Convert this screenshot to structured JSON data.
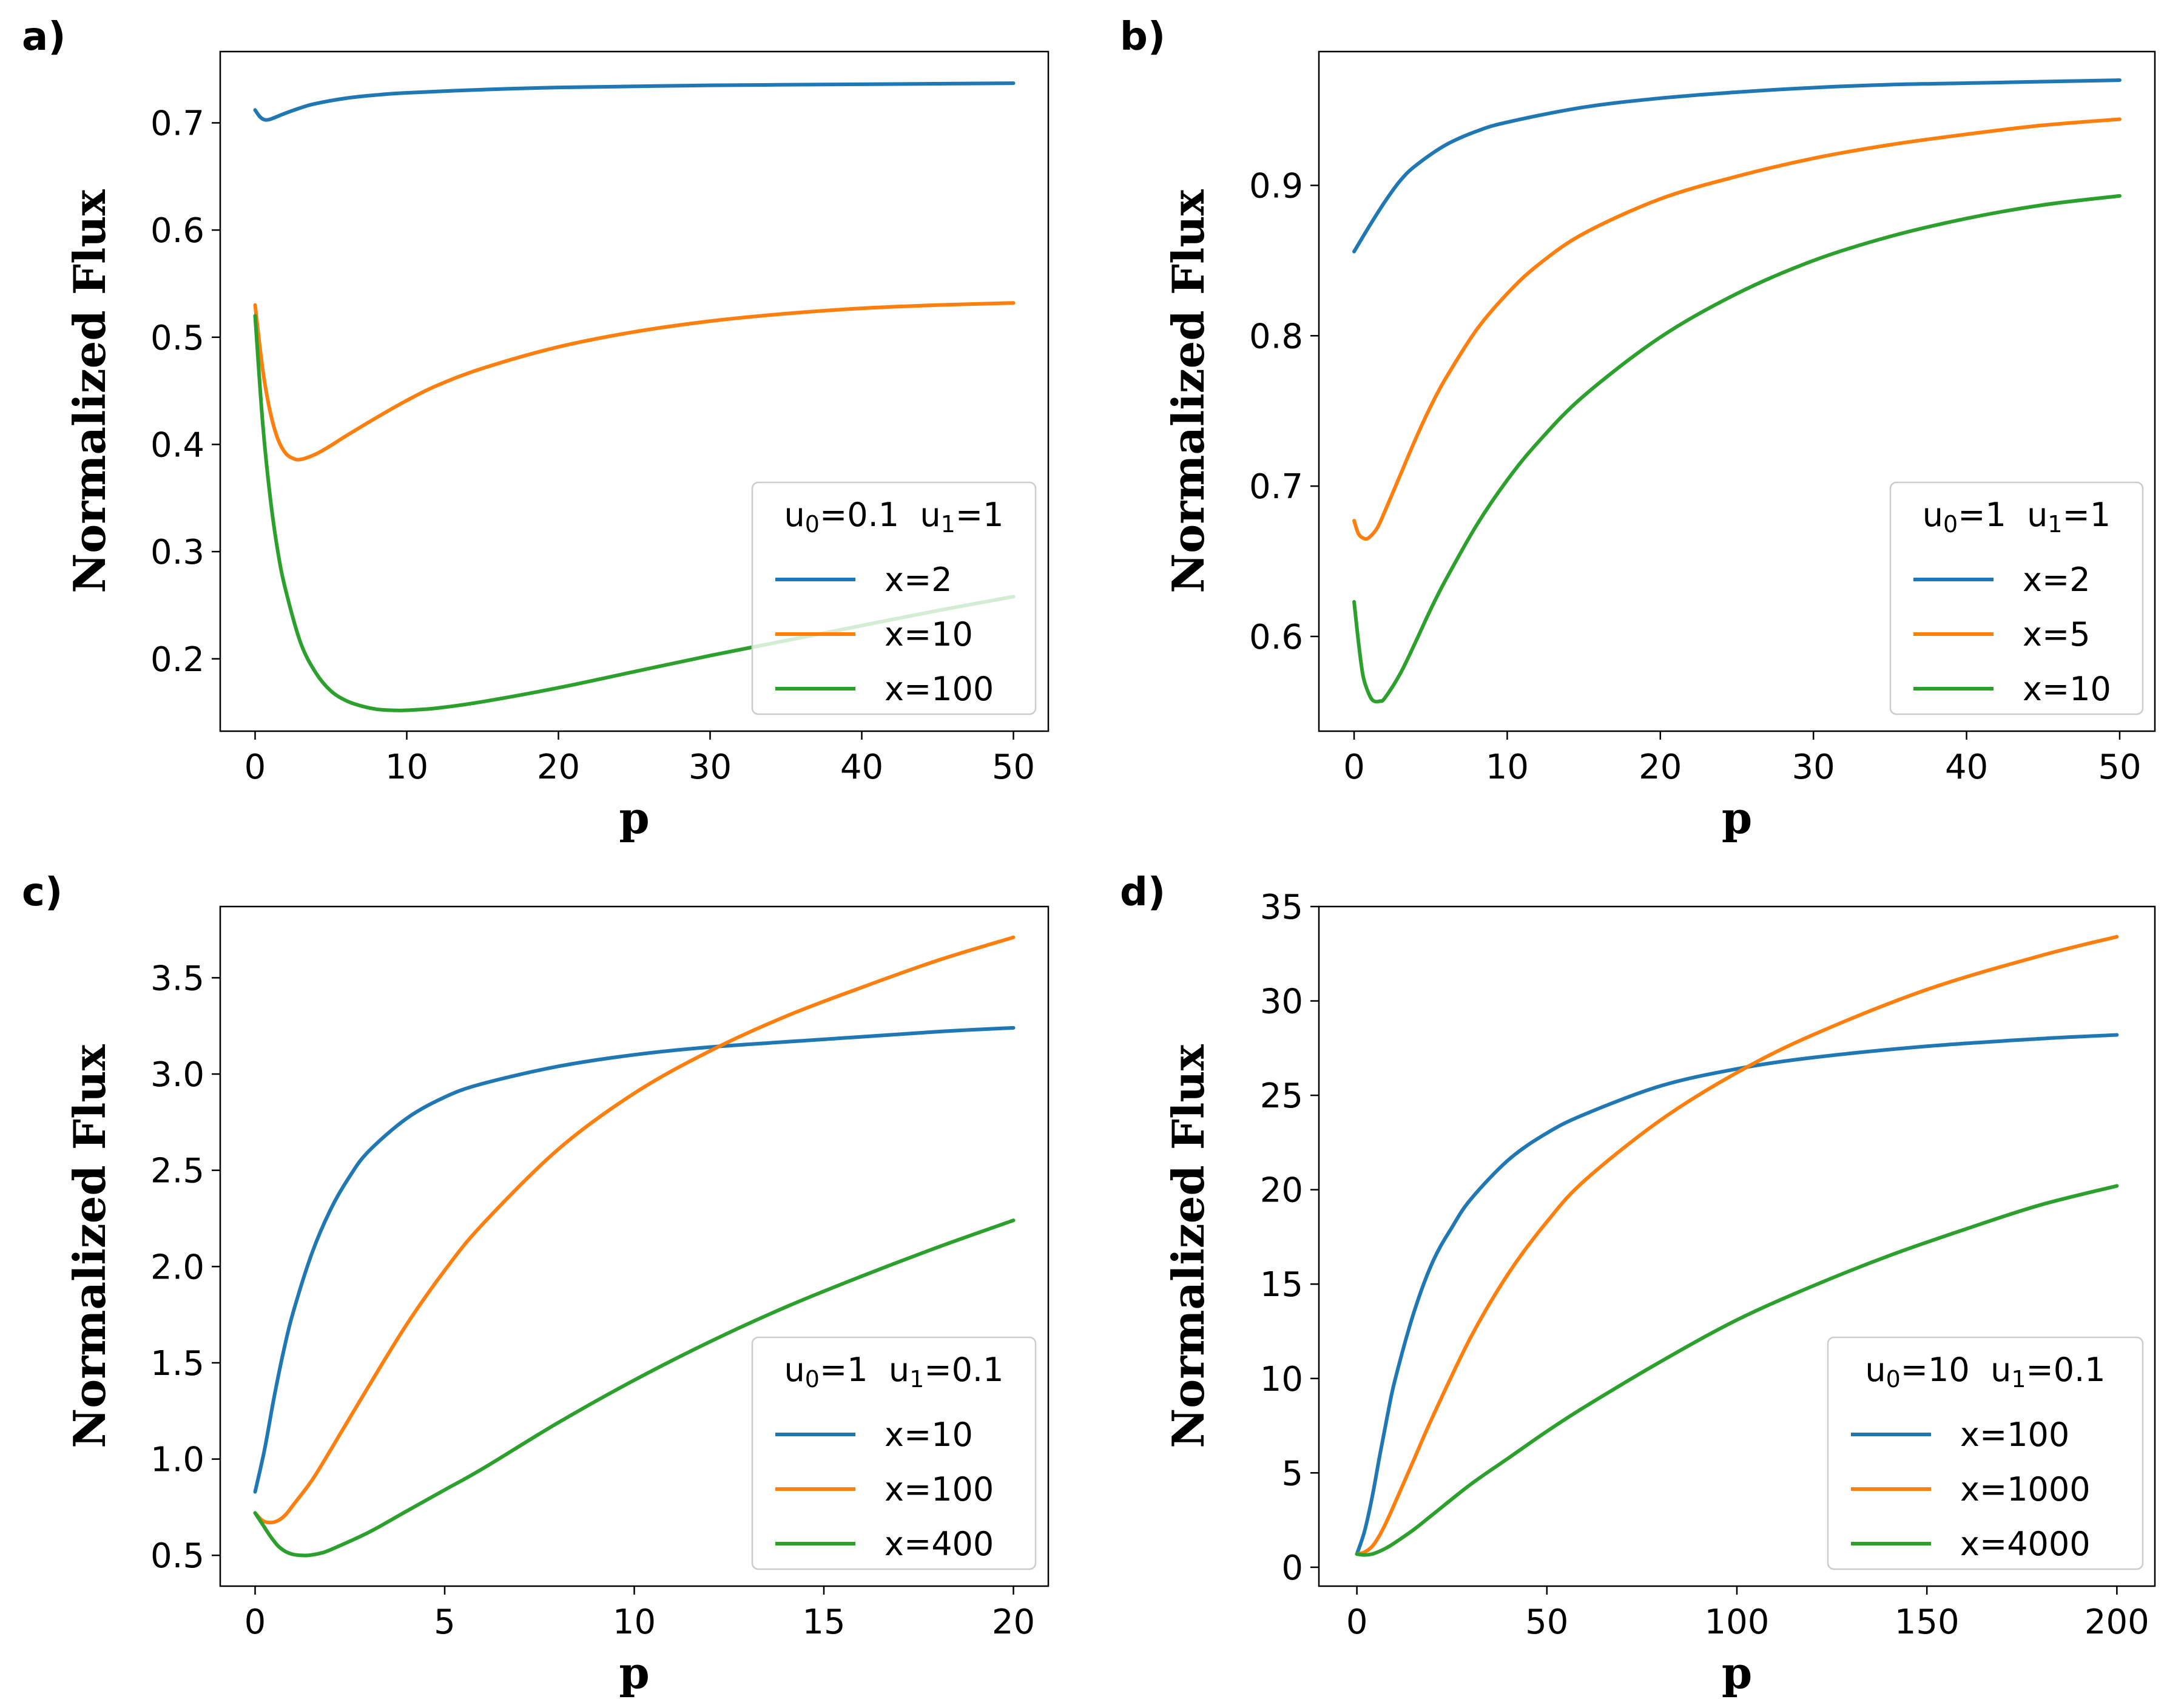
{
  "colors": {
    "blue": "#1f77b4",
    "orange": "#ff7f0e",
    "green": "#2ca02c"
  },
  "chart_data": [
    {
      "type": "line",
      "panel_label": "a)",
      "xlabel": "p",
      "ylabel": "Normalized Flux",
      "xlim": [
        -2.3,
        52.3
      ],
      "ylim": [
        0.1325,
        0.7665
      ],
      "xticks": [
        0,
        10,
        20,
        30,
        40,
        50
      ],
      "xtick_labels": [
        "0",
        "10",
        "20",
        "30",
        "40",
        "50"
      ],
      "yticks": [
        0.2,
        0.3,
        0.4,
        0.5,
        0.6,
        0.7
      ],
      "ytick_labels": [
        "0.2",
        "0.3",
        "0.4",
        "0.5",
        "0.6",
        "0.7"
      ],
      "legend_title": {
        "u0": "0.1",
        "u1": "1"
      },
      "legend_loc": "lower-right",
      "series": [
        {
          "name": "x=2",
          "color": "#1f77b4",
          "x": [
            0,
            0.3,
            0.6,
            0.9,
            1.3,
            2,
            3,
            4,
            6,
            8,
            10,
            15,
            20,
            30,
            40,
            50
          ],
          "y": [
            0.712,
            0.706,
            0.703,
            0.703,
            0.705,
            0.709,
            0.714,
            0.718,
            0.723,
            0.726,
            0.728,
            0.731,
            0.733,
            0.735,
            0.736,
            0.737
          ]
        },
        {
          "name": "x=10",
          "color": "#ff7f0e",
          "x": [
            0,
            0.5,
            1,
            1.5,
            2,
            2.5,
            3,
            4,
            5,
            6,
            8,
            10,
            12,
            15,
            20,
            25,
            30,
            35,
            40,
            45,
            50
          ],
          "y": [
            0.53,
            0.47,
            0.43,
            0.405,
            0.392,
            0.387,
            0.386,
            0.391,
            0.399,
            0.408,
            0.425,
            0.441,
            0.455,
            0.471,
            0.491,
            0.505,
            0.515,
            0.522,
            0.527,
            0.53,
            0.532
          ]
        },
        {
          "name": "x=100",
          "color": "#2ca02c",
          "x": [
            0,
            0.5,
            1,
            1.5,
            2,
            3,
            4,
            5,
            6,
            7,
            8,
            9,
            10,
            12,
            15,
            20,
            25,
            30,
            35,
            40,
            45,
            50
          ],
          "y": [
            0.52,
            0.42,
            0.35,
            0.3,
            0.265,
            0.215,
            0.187,
            0.17,
            0.161,
            0.156,
            0.153,
            0.152,
            0.152,
            0.154,
            0.16,
            0.173,
            0.188,
            0.203,
            0.217,
            0.231,
            0.245,
            0.258
          ]
        }
      ]
    },
    {
      "type": "line",
      "panel_label": "b)",
      "xlabel": "p",
      "ylabel": "Normalized Flux",
      "xlim": [
        -2.3,
        52.3
      ],
      "ylim": [
        0.537,
        0.989
      ],
      "xticks": [
        0,
        10,
        20,
        30,
        40,
        50
      ],
      "xtick_labels": [
        "0",
        "10",
        "20",
        "30",
        "40",
        "50"
      ],
      "yticks": [
        0.6,
        0.7,
        0.8,
        0.9
      ],
      "ytick_labels": [
        "0.6",
        "0.7",
        "0.8",
        "0.9"
      ],
      "legend_title": {
        "u0": "1",
        "u1": "1"
      },
      "legend_loc": "lower-right",
      "series": [
        {
          "name": "x=2",
          "color": "#1f77b4",
          "x": [
            0,
            1,
            2,
            3,
            4,
            6,
            8,
            10,
            15,
            20,
            25,
            30,
            35,
            40,
            45,
            50
          ],
          "y": [
            0.856,
            0.873,
            0.889,
            0.903,
            0.913,
            0.927,
            0.936,
            0.942,
            0.952,
            0.958,
            0.962,
            0.965,
            0.967,
            0.968,
            0.969,
            0.97
          ]
        },
        {
          "name": "x=5",
          "color": "#ff7f0e",
          "x": [
            0,
            0.3,
            0.7,
            1,
            1.5,
            2,
            3,
            4,
            5,
            6,
            8,
            10,
            12,
            15,
            20,
            25,
            30,
            35,
            40,
            45,
            50
          ],
          "y": [
            0.677,
            0.668,
            0.665,
            0.666,
            0.672,
            0.683,
            0.707,
            0.731,
            0.753,
            0.772,
            0.804,
            0.828,
            0.847,
            0.868,
            0.891,
            0.906,
            0.918,
            0.927,
            0.934,
            0.94,
            0.944
          ]
        },
        {
          "name": "x=10",
          "color": "#2ca02c",
          "x": [
            0,
            0.3,
            0.6,
            1,
            1.3,
            1.7,
            2,
            3,
            4,
            5,
            6,
            8,
            10,
            12,
            15,
            20,
            25,
            30,
            35,
            40,
            45,
            50
          ],
          "y": [
            0.623,
            0.595,
            0.573,
            0.561,
            0.557,
            0.557,
            0.559,
            0.575,
            0.596,
            0.618,
            0.638,
            0.674,
            0.704,
            0.729,
            0.76,
            0.799,
            0.828,
            0.85,
            0.866,
            0.878,
            0.887,
            0.893
          ]
        }
      ]
    },
    {
      "type": "line",
      "panel_label": "c)",
      "xlabel": "p",
      "ylabel": "Normalized Flux",
      "xlim": [
        -0.92,
        20.92
      ],
      "ylim": [
        0.34,
        3.87
      ],
      "xticks": [
        0,
        5,
        10,
        15,
        20
      ],
      "xtick_labels": [
        "0",
        "5",
        "10",
        "15",
        "20"
      ],
      "yticks": [
        0.5,
        1.0,
        1.5,
        2.0,
        2.5,
        3.0,
        3.5
      ],
      "ytick_labels": [
        "0.5",
        "1.0",
        "1.5",
        "2.0",
        "2.5",
        "3.0",
        "3.5"
      ],
      "legend_title": {
        "u0": "1",
        "u1": "0.1"
      },
      "legend_loc": "lower-right",
      "series": [
        {
          "name": "x=10",
          "color": "#1f77b4",
          "x": [
            0,
            0.25,
            0.5,
            0.75,
            1,
            1.5,
            2,
            2.5,
            3,
            4,
            5,
            6,
            8,
            10,
            12,
            15,
            18,
            20
          ],
          "y": [
            0.83,
            1.05,
            1.32,
            1.56,
            1.76,
            2.07,
            2.3,
            2.47,
            2.6,
            2.77,
            2.88,
            2.95,
            3.04,
            3.1,
            3.14,
            3.18,
            3.22,
            3.24
          ]
        },
        {
          "name": "x=100",
          "color": "#ff7f0e",
          "x": [
            0,
            0.2,
            0.4,
            0.6,
            0.8,
            1,
            1.5,
            2,
            3,
            4,
            5,
            6,
            8,
            10,
            12,
            14,
            16,
            18,
            20
          ],
          "y": [
            0.72,
            0.68,
            0.67,
            0.68,
            0.71,
            0.76,
            0.89,
            1.05,
            1.38,
            1.7,
            1.98,
            2.22,
            2.61,
            2.9,
            3.12,
            3.3,
            3.45,
            3.59,
            3.71
          ]
        },
        {
          "name": "x=400",
          "color": "#2ca02c",
          "x": [
            0,
            0.2,
            0.4,
            0.6,
            0.8,
            1,
            1.2,
            1.4,
            1.7,
            2,
            3,
            4,
            5,
            6,
            8,
            10,
            12,
            14,
            16,
            18,
            20
          ],
          "y": [
            0.72,
            0.66,
            0.6,
            0.55,
            0.52,
            0.505,
            0.5,
            0.5,
            0.51,
            0.53,
            0.62,
            0.73,
            0.84,
            0.95,
            1.19,
            1.41,
            1.61,
            1.79,
            1.95,
            2.1,
            2.24
          ]
        }
      ]
    },
    {
      "type": "line",
      "panel_label": "d)",
      "xlabel": "p",
      "ylabel": "Normalized Flux",
      "xlim": [
        -10,
        210
      ],
      "ylim": [
        -1.0,
        35.0
      ],
      "xticks": [
        0,
        50,
        100,
        150,
        200
      ],
      "xtick_labels": [
        "0",
        "50",
        "100",
        "150",
        "200"
      ],
      "yticks": [
        0,
        5,
        10,
        15,
        20,
        25,
        30,
        35
      ],
      "ytick_labels": [
        "0",
        "5",
        "10",
        "15",
        "20",
        "25",
        "30",
        "35"
      ],
      "legend_title": {
        "u0": "10",
        "u1": "0.1"
      },
      "legend_loc": "lower-right",
      "series": [
        {
          "name": "x=100",
          "color": "#1f77b4",
          "x": [
            0,
            2,
            4,
            6,
            8,
            10,
            15,
            20,
            25,
            30,
            40,
            50,
            60,
            80,
            100,
            120,
            150,
            180,
            200
          ],
          "y": [
            0.7,
            1.9,
            3.7,
            5.9,
            8.0,
            9.9,
            13.5,
            16.2,
            18.0,
            19.5,
            21.6,
            23.0,
            24.0,
            25.5,
            26.4,
            27.0,
            27.6,
            28.0,
            28.2
          ]
        },
        {
          "name": "x=1000",
          "color": "#ff7f0e",
          "x": [
            0,
            2,
            4,
            6,
            8,
            10,
            15,
            20,
            30,
            40,
            50,
            60,
            80,
            100,
            120,
            150,
            180,
            200
          ],
          "y": [
            0.7,
            0.8,
            1.1,
            1.7,
            2.5,
            3.4,
            5.7,
            8.0,
            12.2,
            15.6,
            18.3,
            20.5,
            23.7,
            26.2,
            28.2,
            30.6,
            32.4,
            33.4
          ]
        },
        {
          "name": "x=4000",
          "color": "#2ca02c",
          "x": [
            0,
            2,
            4,
            6,
            8,
            10,
            15,
            20,
            30,
            40,
            50,
            60,
            80,
            100,
            120,
            140,
            160,
            180,
            200
          ],
          "y": [
            0.7,
            0.65,
            0.7,
            0.85,
            1.05,
            1.3,
            2.0,
            2.8,
            4.4,
            5.8,
            7.2,
            8.5,
            10.9,
            13.1,
            14.9,
            16.5,
            17.9,
            19.2,
            20.2
          ]
        }
      ]
    }
  ]
}
